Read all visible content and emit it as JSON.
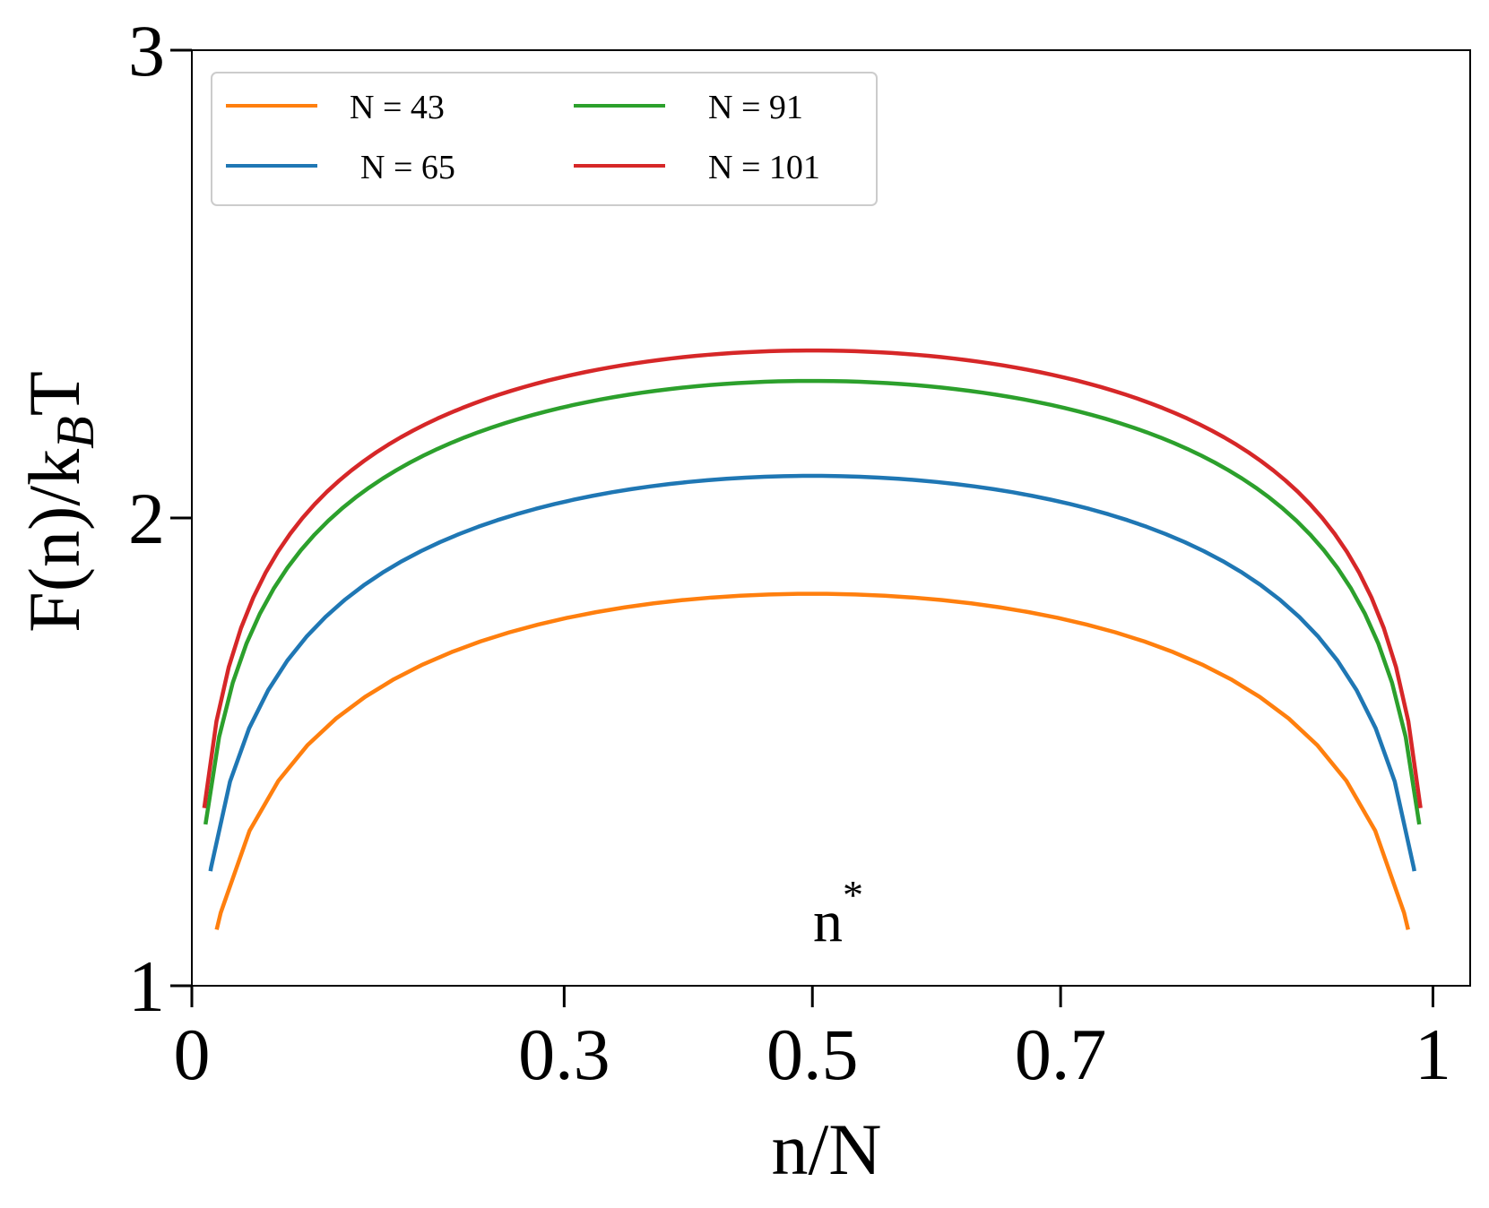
{
  "chart_data": {
    "type": "line",
    "xlabel": "n/N",
    "ylabel_main": "F(n)/k",
    "ylabel_sub": "B",
    "ylabel_tail": "T",
    "xlim": [
      0,
      1.03
    ],
    "ylim": [
      1,
      3
    ],
    "xticks": [
      0,
      0.3,
      0.5,
      0.7,
      1
    ],
    "xtick_labels": [
      "0",
      "0.3",
      "0.5",
      "0.7",
      "1"
    ],
    "yticks": [
      1,
      2,
      3
    ],
    "ytick_labels": [
      "1",
      "2",
      "3"
    ],
    "grid": false,
    "legend_position": "top-left",
    "annotation": {
      "text": "n",
      "sup": "*",
      "x": 0.5,
      "y": 1.1
    },
    "series": [
      {
        "name": "N = 43",
        "color": "#ff7f0e",
        "N": 43,
        "peak": 1.838,
        "x": [
          0.02,
          0.5,
          0.98
        ],
        "y": [
          1.12,
          1.838,
          1.12
        ]
      },
      {
        "name": "N = 65",
        "color": "#1f77b4",
        "N": 65,
        "peak": 2.09,
        "x": [
          0.015,
          0.5,
          0.985
        ],
        "y": [
          1.245,
          2.09,
          1.245
        ]
      },
      {
        "name": "N = 91",
        "color": "#2ca02c",
        "N": 91,
        "peak": 2.293,
        "x": [
          0.011,
          0.5,
          0.989
        ],
        "y": [
          1.345,
          2.293,
          1.345
        ]
      },
      {
        "name": "N = 101",
        "color": "#d62728",
        "N": 101,
        "peak": 2.358,
        "x": [
          0.01,
          0.5,
          0.99
        ],
        "y": [
          1.38,
          2.358,
          1.38
        ]
      }
    ]
  }
}
